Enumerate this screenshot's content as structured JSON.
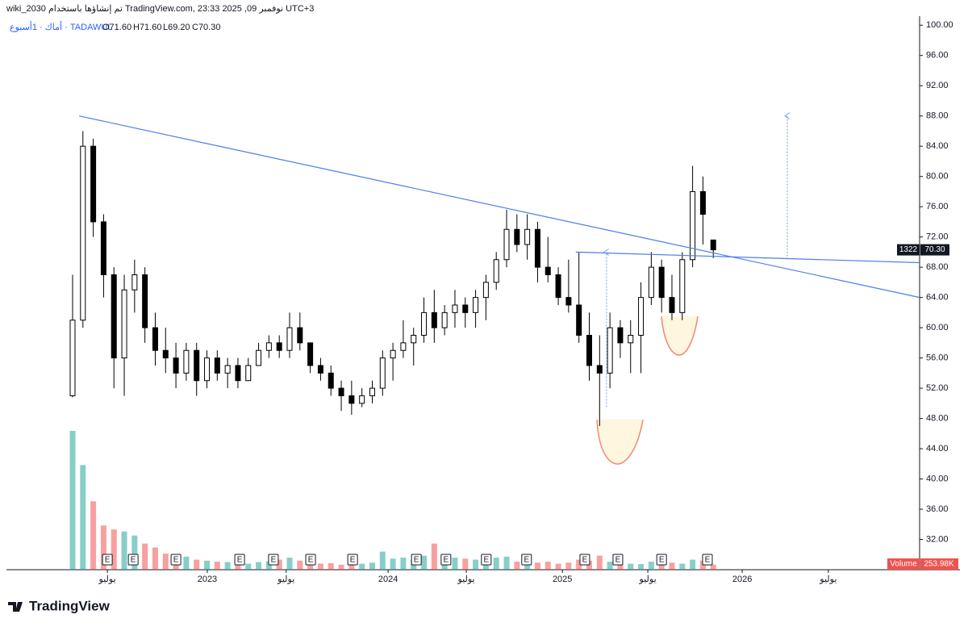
{
  "header": {
    "created": "wiki_2030 تم إنشاؤها باستخدام TradingView.com, 23:33 نوفمبر 09, 2025 UTC+3",
    "symbol": "أماك · 1أسبوع · TADAWUL",
    "open": "O71.60",
    "high": "H71.60",
    "low": "L69.20",
    "close": "C70.30"
  },
  "footer": {
    "logo": "TradingView"
  },
  "chart_data": {
    "type": "candlestick",
    "x": [
      0,
      3,
      6,
      9,
      12,
      15,
      18,
      21,
      24,
      27,
      30,
      33,
      36,
      39,
      42,
      45,
      48,
      51,
      54,
      57,
      60,
      63,
      66,
      69,
      72,
      75,
      78,
      81,
      84,
      87,
      90,
      93,
      96,
      99,
      102,
      105,
      108,
      111,
      114,
      117,
      120,
      123,
      126,
      129,
      132,
      135,
      138,
      141,
      144,
      147,
      150,
      153,
      156,
      159,
      162,
      165,
      168,
      171,
      174,
      177,
      180,
      183,
      186
    ],
    "open": [
      51,
      61,
      84,
      74,
      67,
      56,
      65,
      67,
      60,
      57,
      56,
      54,
      57,
      53,
      56,
      54,
      55,
      53,
      55,
      57,
      58,
      57,
      60,
      58,
      55,
      54,
      52,
      51,
      50,
      51,
      52,
      56,
      57,
      58,
      59,
      62,
      60,
      62,
      63,
      62,
      64,
      66,
      69,
      73,
      71,
      73,
      68,
      67,
      64,
      63,
      59,
      55,
      54,
      60,
      58,
      59,
      64,
      68,
      64,
      62,
      69,
      78,
      71.6
    ],
    "high": [
      67,
      86,
      85,
      75,
      68,
      67,
      69,
      68,
      62,
      60,
      58,
      58,
      58,
      57,
      57,
      56,
      56,
      56,
      58,
      59,
      59,
      62,
      62,
      58,
      56,
      55,
      53,
      53,
      52,
      53,
      57,
      58,
      61,
      60,
      64,
      65,
      63,
      65,
      64,
      65,
      67,
      70,
      75.6,
      75,
      75,
      74,
      72,
      68,
      69,
      70,
      62,
      59,
      62,
      61,
      61,
      66,
      70,
      69,
      67,
      70,
      81.4,
      80,
      71.6
    ],
    "low": [
      50.8,
      60,
      72,
      64,
      52,
      51,
      62,
      58,
      55,
      54,
      52,
      53,
      51,
      52,
      53,
      52,
      52,
      53,
      55,
      56,
      56,
      56,
      57,
      54,
      53,
      51,
      49,
      48.5,
      49.5,
      50,
      51,
      53,
      56,
      55,
      58,
      58,
      59,
      60,
      60,
      60,
      61,
      65,
      68,
      70,
      69,
      66,
      66,
      63,
      62,
      58,
      53,
      47,
      52,
      56,
      54,
      54,
      63,
      62,
      61,
      61,
      68,
      71,
      69.2
    ],
    "close": [
      61,
      84,
      74,
      67,
      56,
      65,
      67,
      60,
      57,
      56,
      54,
      57,
      53,
      56,
      54,
      55,
      53,
      55,
      57,
      58,
      57,
      60,
      58,
      55,
      54,
      52,
      51,
      50,
      51,
      52,
      56,
      57,
      58,
      59,
      62,
      60,
      62,
      63,
      62,
      64,
      66,
      69,
      73,
      71,
      73,
      68,
      67,
      64,
      63,
      59,
      55,
      54,
      60,
      58,
      59,
      64,
      68,
      64,
      62,
      69,
      78,
      75,
      70.3
    ],
    "volume": [
      6900000,
      5200000,
      3400000,
      2200000,
      2000000,
      1900000,
      1700000,
      1300000,
      1100000,
      800000,
      700000,
      650000,
      500000,
      450000,
      400000,
      380000,
      350000,
      300000,
      380000,
      420000,
      500000,
      600000,
      450000,
      350000,
      300000,
      320000,
      250000,
      280000,
      300000,
      350000,
      900000,
      550000,
      600000,
      500000,
      700000,
      1300000,
      700000,
      600000,
      550000,
      500000,
      450000,
      600000,
      650000,
      400000,
      380000,
      350000,
      400000,
      300000,
      350000,
      500000,
      450000,
      700000,
      400000,
      350000,
      300000,
      280000,
      400000,
      300000,
      350000,
      300000,
      500000,
      450000,
      253980
    ],
    "up_color": "#ffffff",
    "down_color": "#000000",
    "volume_up_color": "#26a69a",
    "volume_down_color": "#ef5350",
    "ylim": [
      28,
      101.2
    ],
    "yticks": [
      {
        "value": 32,
        "label": "32.00"
      },
      {
        "value": 36,
        "label": "36.00"
      },
      {
        "value": 40,
        "label": "40.00"
      },
      {
        "value": 44,
        "label": "44.00"
      },
      {
        "value": 48,
        "label": "48.00"
      },
      {
        "value": 52,
        "label": "52.00"
      },
      {
        "value": 56,
        "label": "56.00"
      },
      {
        "value": 60,
        "label": "60.00"
      },
      {
        "value": 64,
        "label": "64.00"
      },
      {
        "value": 68,
        "label": "68.00"
      },
      {
        "value": 72,
        "label": "72.00"
      },
      {
        "value": 76,
        "label": "76.00"
      },
      {
        "value": 80,
        "label": "80.00"
      },
      {
        "value": 84,
        "label": "84.00"
      },
      {
        "value": 88,
        "label": "88.00"
      },
      {
        "value": 92,
        "label": "92.00"
      },
      {
        "value": 96,
        "label": "96.00"
      },
      {
        "value": 100,
        "label": "100.00"
      }
    ],
    "xlim": [
      -19.2,
      245.9
    ],
    "xticks": [
      {
        "value": 10.1,
        "label": "يوليو"
      },
      {
        "value": 39.1,
        "label": "2023"
      },
      {
        "value": 62,
        "label": "يوليو"
      },
      {
        "value": 91.6,
        "label": "2024"
      },
      {
        "value": 114.3,
        "label": "يوليو"
      },
      {
        "value": 142.2,
        "label": "2025"
      },
      {
        "value": 167,
        "label": "يوليو"
      },
      {
        "value": 194.4,
        "label": "2026"
      },
      {
        "value": 219.4,
        "label": "يوليو"
      }
    ],
    "last_price_label": "70.30",
    "countdown": "1322",
    "volume_label": "Volume",
    "volume_last_label": "253.98K",
    "earnings": {
      "label": "E",
      "x": [
        10.1,
        17.6,
        30.0,
        48.5,
        58.3,
        69.1,
        81.3,
        99.8,
        108.4,
        120.1,
        131.8,
        148.7,
        158.3,
        171.0,
        184.3
      ]
    },
    "drawings": [
      {
        "style": "solid",
        "color": "#4a7fe8",
        "points": [
          [
            1.9,
            88
          ],
          [
            245.9,
            64
          ]
        ]
      },
      {
        "style": "solid",
        "color": "#4a7fe8",
        "points": [
          [
            146.1,
            70
          ],
          [
            245.9,
            68.6
          ]
        ]
      },
      {
        "style": "dotted-arrow",
        "color": "#6fa0e8",
        "points": [
          [
            155,
            49.5
          ],
          [
            155,
            70
          ]
        ]
      },
      {
        "style": "dotted-arrow",
        "color": "#6fa0e8",
        "points": [
          [
            207.5,
            69
          ],
          [
            207.5,
            88
          ]
        ]
      }
    ]
  }
}
